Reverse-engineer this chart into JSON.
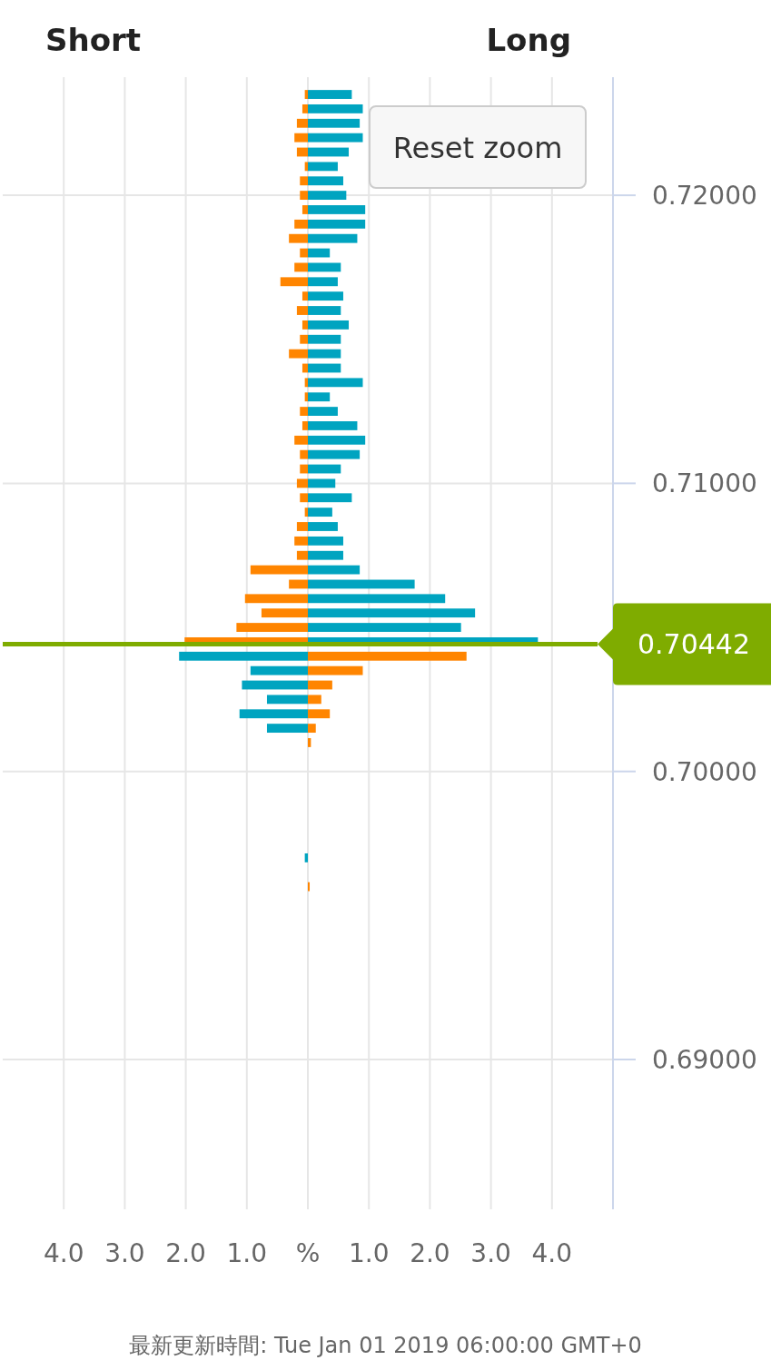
{
  "chart_data": {
    "type": "bar",
    "orientation": "horizontal",
    "stacked": true,
    "x": [
      0.7235,
      0.723,
      0.7225,
      0.722,
      0.7215,
      0.721,
      0.7205,
      0.72,
      0.7195,
      0.719,
      0.7185,
      0.718,
      0.7175,
      0.717,
      0.7165,
      0.716,
      0.7155,
      0.715,
      0.7145,
      0.714,
      0.7135,
      0.713,
      0.7125,
      0.712,
      0.7115,
      0.711,
      0.7105,
      0.71,
      0.7095,
      0.709,
      0.7085,
      0.708,
      0.7075,
      0.707,
      0.7065,
      0.706,
      0.7055,
      0.705,
      0.7045,
      0.704,
      0.7035,
      0.703,
      0.7025,
      0.702,
      0.7015,
      0.701,
      0.697,
      0.696
    ],
    "series": [
      {
        "color": "#ff8500",
        "values": [
          -0.05,
          -0.09,
          -0.18,
          -0.22,
          -0.18,
          -0.05,
          -0.13,
          -0.13,
          -0.09,
          -0.22,
          -0.31,
          -0.13,
          -0.22,
          -0.45,
          -0.09,
          -0.18,
          -0.09,
          -0.13,
          -0.31,
          -0.09,
          -0.05,
          -0.05,
          -0.13,
          -0.09,
          -0.22,
          -0.13,
          -0.13,
          -0.18,
          -0.13,
          -0.05,
          -0.18,
          -0.22,
          -0.18,
          -0.94,
          -0.31,
          -1.03,
          -0.76,
          -1.17,
          -2.02,
          2.6,
          0.9,
          0.4,
          0.22,
          0.36,
          0.13,
          0.05,
          null,
          0.03
        ]
      },
      {
        "color": "#00a4c0",
        "values": [
          0.72,
          0.9,
          0.85,
          0.9,
          0.67,
          0.49,
          0.58,
          0.63,
          0.94,
          0.94,
          0.81,
          0.36,
          0.54,
          0.49,
          0.58,
          0.54,
          0.67,
          0.54,
          0.54,
          0.54,
          0.9,
          0.36,
          0.49,
          0.81,
          0.94,
          0.85,
          0.54,
          0.45,
          0.72,
          0.4,
          0.49,
          0.58,
          0.58,
          0.85,
          1.75,
          2.25,
          2.74,
          2.51,
          3.77,
          -2.11,
          -0.94,
          -1.08,
          -0.67,
          -1.12,
          -0.67,
          null,
          -0.05,
          null
        ]
      }
    ],
    "xlim": [
      -5,
      5
    ],
    "xticks": [
      {
        "value": -4,
        "label": "4.0"
      },
      {
        "value": -3,
        "label": "3.0"
      },
      {
        "value": -2,
        "label": "2.0"
      },
      {
        "value": -1,
        "label": "1.0"
      },
      {
        "value": 0,
        "label": "%"
      },
      {
        "value": 1,
        "label": "1.0"
      },
      {
        "value": 2,
        "label": "2.0"
      },
      {
        "value": 3,
        "label": "3.0"
      },
      {
        "value": 4,
        "label": "4.0"
      }
    ],
    "ylim": [
      0.6848,
      0.7241
    ],
    "yticks": [
      {
        "value": 0.69,
        "label": "0.69000"
      },
      {
        "value": 0.7,
        "label": "0.70000"
      },
      {
        "value": 0.71,
        "label": "0.71000"
      },
      {
        "value": 0.72,
        "label": "0.72000"
      }
    ],
    "grid": true,
    "ref_lines": [
      {
        "axis": "y",
        "value": 0.70442,
        "label": "0.70442",
        "color": "#7fac00"
      }
    ],
    "annotations": [
      "Short",
      "Long",
      "Reset zoom",
      "最新更新時間: Tue Jan 01 2019 06:00:00 GMT+0"
    ]
  }
}
